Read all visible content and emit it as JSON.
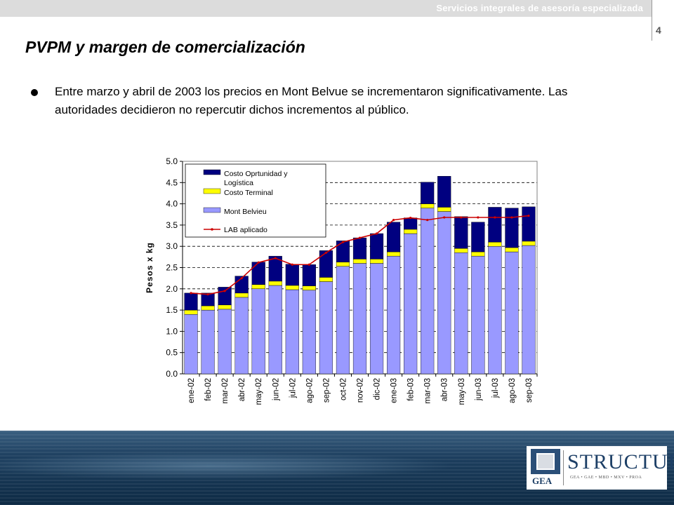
{
  "header": {
    "tagline": "Servicios integrales de asesoría especializada",
    "page_number": "4"
  },
  "slide": {
    "title": "PVPM y margen de comercialización",
    "bullet_text": "Entre marzo y abril de 2003 los precios en Mont Belvue se incrementaron significativamente. Las autoridades decidieron no repercutir dichos incrementos al público."
  },
  "logo": {
    "left_mark": "GEA",
    "brand": "STRUCTURA",
    "subline": "GEA • GAE • MBD • MXV • PROA"
  },
  "colors": {
    "cost_blue": "#000080",
    "terminal_yellow": "#ffff00",
    "mont_belvieu": "#9999ff",
    "lab_line": "#cc0000"
  },
  "chart_data": {
    "type": "bar",
    "stacked": true,
    "ylabel": "Pesos x kg",
    "ylim": [
      0,
      5.0
    ],
    "yticks": [
      "0.0",
      "0.5",
      "1.0",
      "1.5",
      "2.0",
      "2.5",
      "3.0",
      "3.5",
      "4.0",
      "4.5",
      "5.0"
    ],
    "grid": "horizontal dashed",
    "legend_position": "top-left",
    "categories": [
      "ene-02",
      "feb-02",
      "mar-02",
      "abr-02",
      "may-02",
      "jun-02",
      "jul-02",
      "ago-02",
      "sep-02",
      "oct-02",
      "nov-02",
      "dic-02",
      "ene-03",
      "feb-03",
      "mar-03",
      "abr-03",
      "may-03",
      "jun-03",
      "jul-03",
      "ago-03",
      "sep-03"
    ],
    "series": [
      {
        "name": "Mont Belvieu",
        "type": "bar",
        "values": [
          1.4,
          1.5,
          1.52,
          1.8,
          2.0,
          2.08,
          1.98,
          1.97,
          2.17,
          2.53,
          2.6,
          2.6,
          2.77,
          3.3,
          3.9,
          3.82,
          2.85,
          2.77,
          3.0,
          2.87,
          3.02
        ]
      },
      {
        "name": "Costo Terminal",
        "type": "bar",
        "values": [
          0.1,
          0.1,
          0.1,
          0.1,
          0.1,
          0.1,
          0.1,
          0.1,
          0.1,
          0.1,
          0.1,
          0.1,
          0.1,
          0.1,
          0.1,
          0.1,
          0.1,
          0.1,
          0.1,
          0.1,
          0.1
        ]
      },
      {
        "name": "Costo Oprtunidad y Logística",
        "type": "bar",
        "values": [
          0.4,
          0.3,
          0.42,
          0.4,
          0.53,
          0.59,
          0.5,
          0.5,
          0.63,
          0.5,
          0.5,
          0.6,
          0.7,
          0.27,
          0.51,
          0.73,
          0.75,
          0.7,
          0.82,
          0.93,
          0.81
        ]
      },
      {
        "name": "LAB aplicado",
        "type": "line",
        "values": [
          1.9,
          1.87,
          1.95,
          2.25,
          2.62,
          2.72,
          2.57,
          2.57,
          2.85,
          3.1,
          3.2,
          3.3,
          3.62,
          3.67,
          3.62,
          3.68,
          3.68,
          3.68,
          3.68,
          3.68,
          3.72
        ]
      }
    ]
  }
}
